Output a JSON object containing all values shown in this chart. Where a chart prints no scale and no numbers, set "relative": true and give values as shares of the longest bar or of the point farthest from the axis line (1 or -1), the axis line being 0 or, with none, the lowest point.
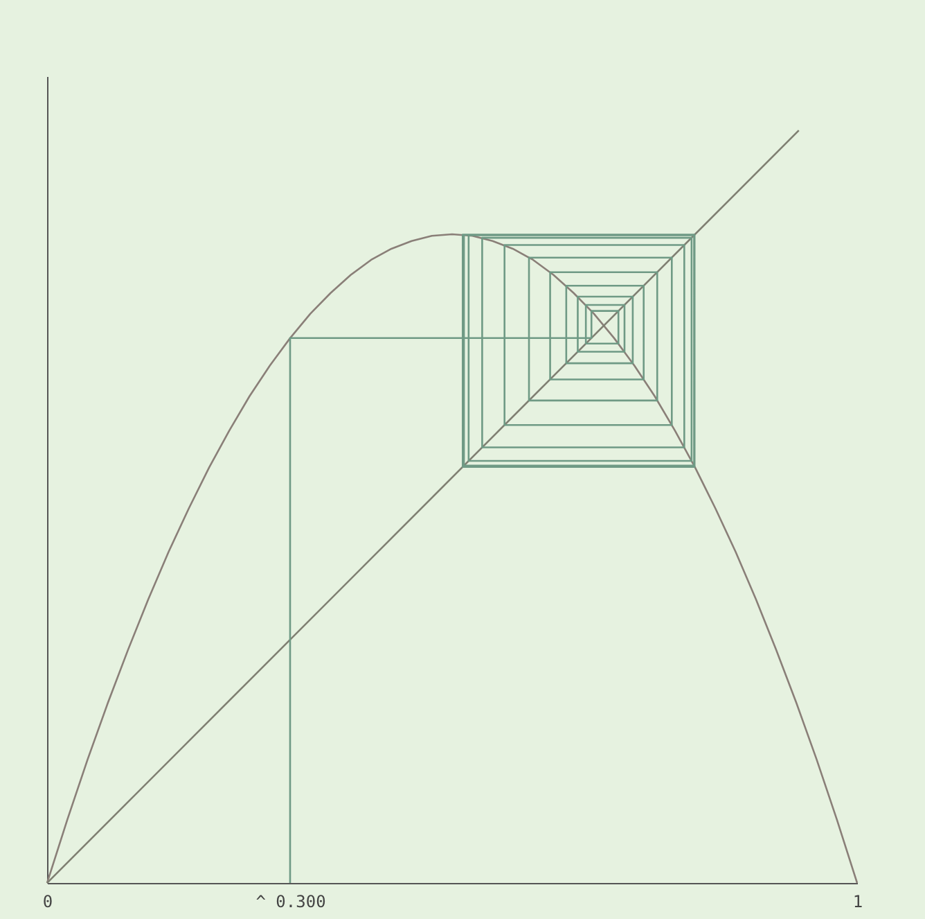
{
  "chart_data": {
    "type": "line",
    "relative": true,
    "xlim": [
      0,
      1
    ],
    "xticks": [
      0,
      {
        "value": 0.3,
        "label": "^ 0.300"
      },
      1
    ],
    "grid": false,
    "marker": "none",
    "line_style": "solid",
    "series": [
      {
        "color": "#8a7f78",
        "x": [
          0,
          0.025,
          0.05,
          0.075,
          0.1,
          0.125,
          0.15,
          0.175,
          0.2,
          0.225,
          0.25,
          0.275,
          0.3,
          0.325,
          0.35,
          0.375,
          0.4,
          0.425,
          0.45,
          0.475,
          0.5,
          0.525,
          0.55,
          0.575,
          0.6,
          0.625,
          0.65,
          0.675,
          0.7,
          0.725,
          0.75,
          0.775,
          0.8,
          0.825,
          0.85,
          0.875,
          0.9,
          0.925,
          0.95,
          0.975,
          1
        ],
        "values": [
          0,
          0.0841,
          0.164,
          0.2392,
          0.31,
          0.3772,
          0.44,
          0.4978,
          0.552,
          0.6013,
          0.647,
          0.6875,
          0.724,
          0.7565,
          0.784,
          0.8082,
          0.828,
          0.8427,
          0.853,
          0.8599,
          0.862,
          0.8599,
          0.853,
          0.8427,
          0.828,
          0.8082,
          0.784,
          0.7565,
          0.724,
          0.6875,
          0.647,
          0.6013,
          0.552,
          0.4978,
          0.44,
          0.3772,
          0.31,
          0.2392,
          0.164,
          0.0841,
          0
        ]
      },
      {
        "color": "#7f7f72",
        "x": [
          0,
          0.928
        ],
        "values": [
          0,
          1
        ]
      },
      {
        "color": "#6f9a85",
        "x": [
          0.3,
          0.3,
          0.672,
          0.672,
          0.7053,
          0.7053,
          0.6651,
          0.6651,
          0.7128,
          0.7128,
          0.6551,
          0.6551,
          0.723,
          0.723,
          0.6409,
          0.6409,
          0.7365,
          0.7365,
          0.621,
          0.621,
          0.7532,
          0.7532,
          0.5949,
          0.5949,
          0.7712,
          0.7712,
          0.5647,
          0.5647,
          0.7866,
          0.7866,
          0.5371,
          0.5371,
          0.7956,
          0.7956,
          0.5204,
          0.5204,
          0.7987,
          0.7987,
          0.5146,
          0.5146,
          0.7993,
          0.7993,
          0.5131,
          0.5131,
          0.7994,
          0.7994
        ],
        "values": [
          0,
          0.7241,
          0.7241,
          0.7601,
          0.7601,
          0.7167,
          0.7167,
          0.7681,
          0.7681,
          0.7059,
          0.7059,
          0.7791,
          0.7791,
          0.6906,
          0.6906,
          0.7937,
          0.7937,
          0.6691,
          0.6691,
          0.8116,
          0.8116,
          0.6411,
          0.6411,
          0.831,
          0.831,
          0.6085,
          0.6085,
          0.8477,
          0.8477,
          0.5788,
          0.5788,
          0.8573,
          0.8573,
          0.5608,
          0.5608,
          0.8606,
          0.8606,
          0.5545,
          0.5545,
          0.8613,
          0.8613,
          0.5529,
          0.5529,
          0.8614,
          0.8614,
          0.8614
        ]
      }
    ]
  }
}
